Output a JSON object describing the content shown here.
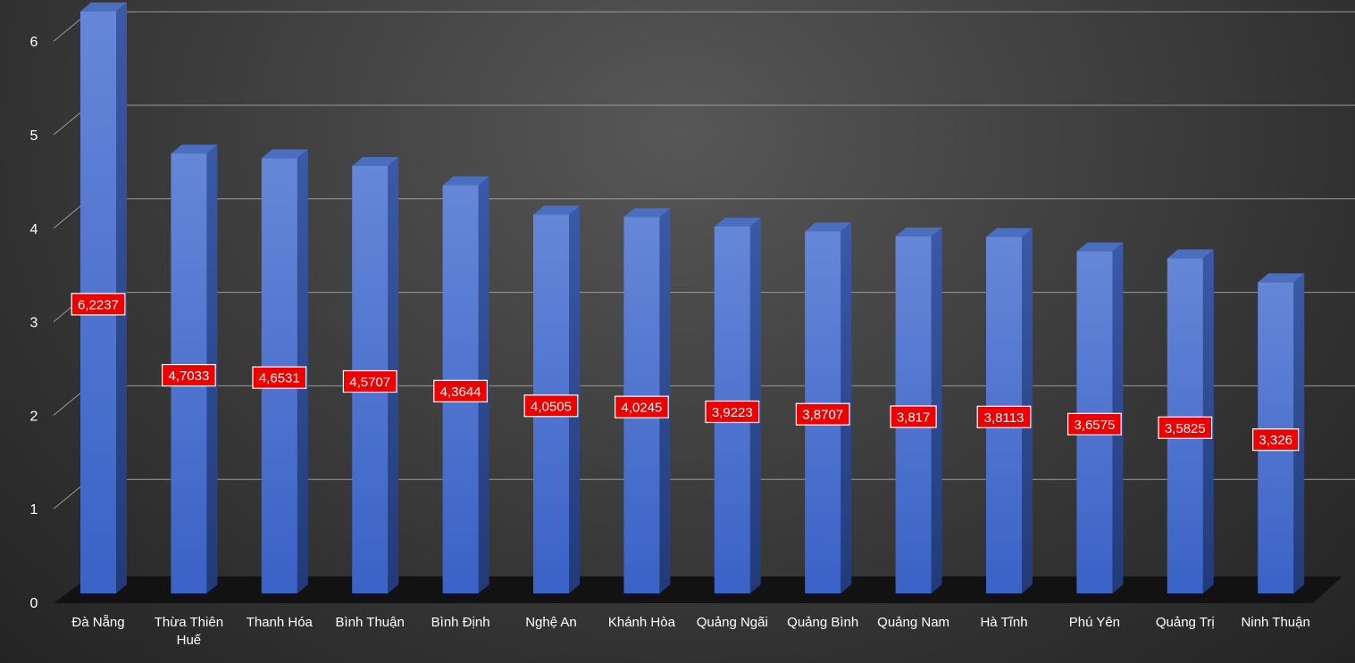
{
  "chart_data": {
    "type": "bar",
    "title": "",
    "xlabel": "",
    "ylabel": "",
    "categories": [
      "Đà Nẵng",
      "Thừa Thiên Huế",
      "Thanh Hóa",
      "Bình Thuận",
      "Bình Định",
      "Nghệ An",
      "Khánh Hòa",
      "Quảng Ngãi",
      "Quảng Bình",
      "Quảng Nam",
      "Hà Tĩnh",
      "Phú Yên",
      "Quảng Trị",
      "Ninh Thuận"
    ],
    "values": [
      6.2237,
      4.7033,
      4.6531,
      4.5707,
      4.3644,
      4.0505,
      4.0245,
      3.9223,
      3.8707,
      3.817,
      3.8113,
      3.6575,
      3.5825,
      3.326
    ],
    "data_labels": [
      "6,2237",
      "4,7033",
      "4,6531",
      "4,5707",
      "4,3644",
      "4,0505",
      "4,0245",
      "3,9223",
      "3,8707",
      "3,817",
      "3,8113",
      "3,6575",
      "3,5825",
      "3,326"
    ],
    "yticks": [
      0,
      1,
      2,
      3,
      4,
      5,
      6
    ],
    "ylim": [
      0,
      6.3
    ],
    "grid": true,
    "style": "3d-bar",
    "colors": {
      "bar_front_top": "#6687d8",
      "bar_front_bottom": "#3a62c7",
      "bar_side": "#2a4488",
      "bar_top": "#4a6fc0",
      "label_bg": "#ee0000",
      "label_border": "#ffffff",
      "grid": "#9a9a9a",
      "floor": "#121212"
    }
  }
}
